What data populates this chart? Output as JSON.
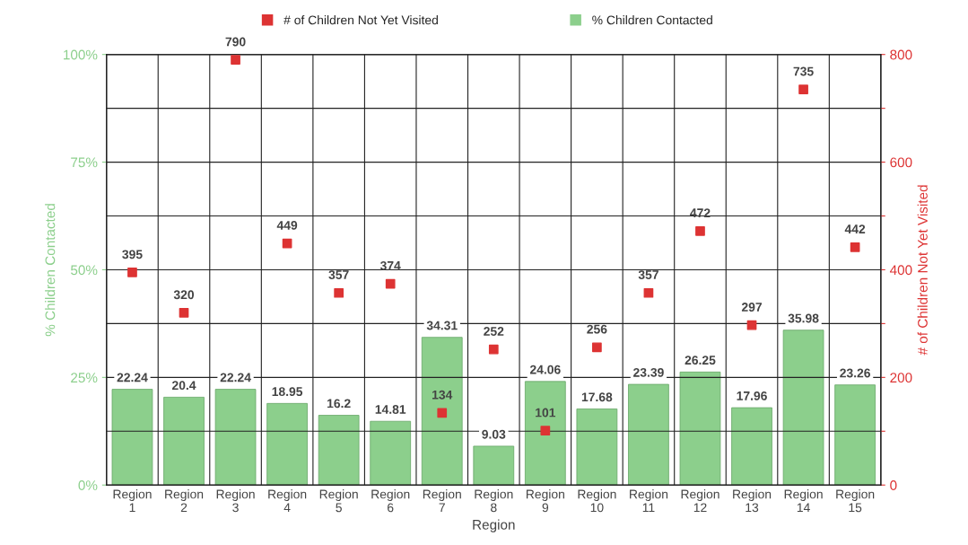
{
  "chart_data": {
    "type": "bar",
    "xlabel": "Region",
    "ylabel": "% Children Contacted",
    "y2label": "# of Children Not Yet Visited",
    "categories": [
      "Region\n1",
      "Region\n2",
      "Region\n3",
      "Region\n4",
      "Region\n5",
      "Region\n6",
      "Region\n7",
      "Region\n8",
      "Region\n9",
      "Region\n10",
      "Region\n11",
      "Region\n12",
      "Region\n13",
      "Region\n14",
      "Region\n15"
    ],
    "series": [
      {
        "name": "# of Children Not Yet Visited",
        "type": "scatter",
        "axis": "y2",
        "color": "#dd3333",
        "marker": "square",
        "values": [
          395,
          320,
          790,
          449,
          357,
          374,
          134,
          252,
          101,
          256,
          357,
          472,
          297,
          735,
          442
        ]
      },
      {
        "name": "% Children Contacted",
        "color": "#8ccf8c",
        "values": [
          22.24,
          20.4,
          22.24,
          18.95,
          16.2,
          14.81,
          34.31,
          9.03,
          24.06,
          17.68,
          23.39,
          26.25,
          17.96,
          35.98,
          23.26
        ]
      }
    ],
    "ylim": [
      0,
      100
    ],
    "yticks": [
      {
        "value": 0,
        "label": "0%"
      },
      {
        "value": 25,
        "label": "25%"
      },
      {
        "value": 50,
        "label": "50%"
      },
      {
        "value": 75,
        "label": "75%"
      },
      {
        "value": 100,
        "label": "100%"
      }
    ],
    "y2lim": [
      0,
      800
    ],
    "y2ticks": [
      0,
      {
        "value": 100,
        "label": null
      },
      200,
      {
        "value": 300,
        "label": null
      },
      400,
      {
        "value": 500,
        "label": null
      },
      600,
      {
        "value": 700,
        "label": null
      },
      800
    ],
    "grid": true,
    "legend": "top",
    "data_labels": true
  }
}
